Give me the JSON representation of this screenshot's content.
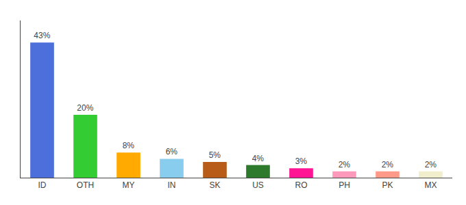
{
  "chart_data": {
    "type": "bar",
    "categories": [
      "ID",
      "OTH",
      "MY",
      "IN",
      "SK",
      "US",
      "RO",
      "PH",
      "PK",
      "MX"
    ],
    "values": [
      43,
      20,
      8,
      6,
      5,
      4,
      3,
      2,
      2,
      2
    ],
    "value_labels": [
      "43%",
      "20%",
      "8%",
      "6%",
      "5%",
      "4%",
      "3%",
      "2%",
      "2%",
      "2%"
    ],
    "colors": [
      "#4d6fdb",
      "#33cc33",
      "#ffaa00",
      "#88ccee",
      "#b85c1a",
      "#2d7a2d",
      "#ff1493",
      "#ff99bb",
      "#ff9988",
      "#f0eecc"
    ],
    "ylim": [
      0,
      50
    ],
    "data_labels": true,
    "tick_labels": "x",
    "grid": false
  }
}
